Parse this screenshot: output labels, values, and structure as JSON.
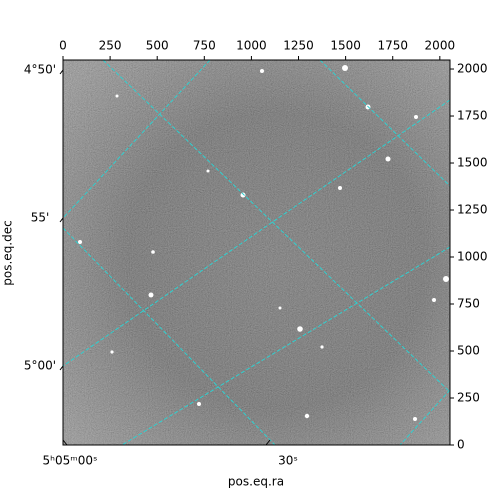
{
  "chart_data": {
    "type": "image",
    "xlabel": "pos.eq.ra",
    "ylabel": "pos.eq.dec",
    "xlim": [
      0,
      2054
    ],
    "ylim": [
      0,
      2048
    ],
    "xticks": [
      0,
      250,
      500,
      750,
      1000,
      1250,
      1500,
      1750,
      2000
    ],
    "yticks": [
      0,
      250,
      500,
      750,
      1000,
      1250,
      1500,
      1750,
      2000
    ],
    "ra_tick_labels": [
      "5ʰ05ᵐ00ˢ",
      "30ˢ"
    ],
    "dec_tick_labels": [
      "4°50'",
      "55'",
      "5°00'"
    ],
    "grid_color": "#2fd0d0"
  }
}
